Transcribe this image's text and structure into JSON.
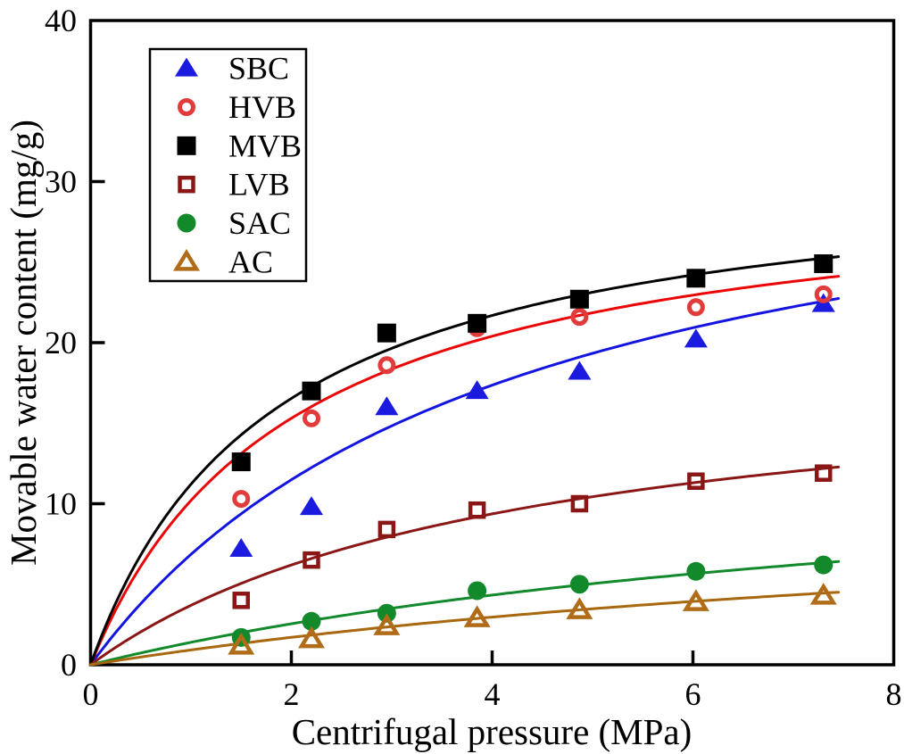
{
  "chart_data": {
    "type": "scatter",
    "title": "",
    "xlabel": "Centrifugal pressure (MPa)",
    "ylabel": "Movable water content (mg/g)",
    "xlim": [
      0,
      8
    ],
    "ylim": [
      0,
      40
    ],
    "x_tick_labels": [
      "0",
      "2",
      "4",
      "6",
      "8"
    ],
    "x_tick_values": [
      0,
      2,
      4,
      6,
      8
    ],
    "y_tick_labels": [
      "0",
      "10",
      "20",
      "30",
      "40"
    ],
    "y_tick_values": [
      0,
      10,
      20,
      30,
      40
    ],
    "grid": false,
    "legend_position": "top-left",
    "frame_color": "#000000",
    "x": [
      1.5,
      2.2,
      2.95,
      3.85,
      4.87,
      6.03,
      7.3
    ],
    "series": [
      {
        "name": "SBC",
        "marker": "triangle-filled",
        "color": "#1b1bdf",
        "line_color": "#1414e0",
        "values": [
          7.2,
          9.8,
          16.0,
          17.0,
          18.2,
          20.2,
          22.4
        ],
        "fit_curve": {
          "model": "langmuir y=a*x/(b+x)",
          "a": 35.5,
          "b": 4.18
        }
      },
      {
        "name": "HVB",
        "marker": "circle-open",
        "color": "#e03c3c",
        "line_color": "#ea0606",
        "values": [
          10.3,
          15.3,
          18.6,
          20.9,
          21.6,
          22.2,
          23.0
        ],
        "fit_curve": {
          "model": "langmuir y=a*x/(b+x)",
          "a": 30.6,
          "b": 2.0
        }
      },
      {
        "name": "MVB",
        "marker": "square-filled",
        "color": "#000000",
        "line_color": "#000000",
        "values": [
          12.6,
          17.0,
          20.6,
          21.2,
          22.7,
          24.0,
          24.9
        ],
        "fit_curve": {
          "model": "langmuir y=a*x/(b+x)",
          "a": 31.5,
          "b": 1.81
        }
      },
      {
        "name": "LVB",
        "marker": "square-open",
        "color": "#8b1616",
        "line_color": "#8b1616",
        "values": [
          4.0,
          6.5,
          8.4,
          9.6,
          10.0,
          11.4,
          11.9
        ],
        "fit_curve": {
          "model": "langmuir y=a*x/(b+x)",
          "a": 19.2,
          "b": 4.2
        }
      },
      {
        "name": "SAC",
        "marker": "circle-filled",
        "color": "#128a2b",
        "line_color": "#128a2b",
        "values": [
          1.7,
          2.7,
          3.2,
          4.6,
          5.0,
          5.8,
          6.2
        ],
        "fit_curve": {
          "model": "langmuir y=a*x/(b+x)",
          "a": 14.5,
          "b": 9.4
        }
      },
      {
        "name": "AC",
        "marker": "triangle-open",
        "color": "#b06c18",
        "line_color": "#a8680f",
        "values": [
          1.2,
          1.6,
          2.4,
          2.9,
          3.4,
          3.9,
          4.3
        ],
        "fit_curve": {
          "model": "langmuir y=a*x/(b+x)",
          "a": 11.4,
          "b": 11.4
        }
      }
    ]
  }
}
